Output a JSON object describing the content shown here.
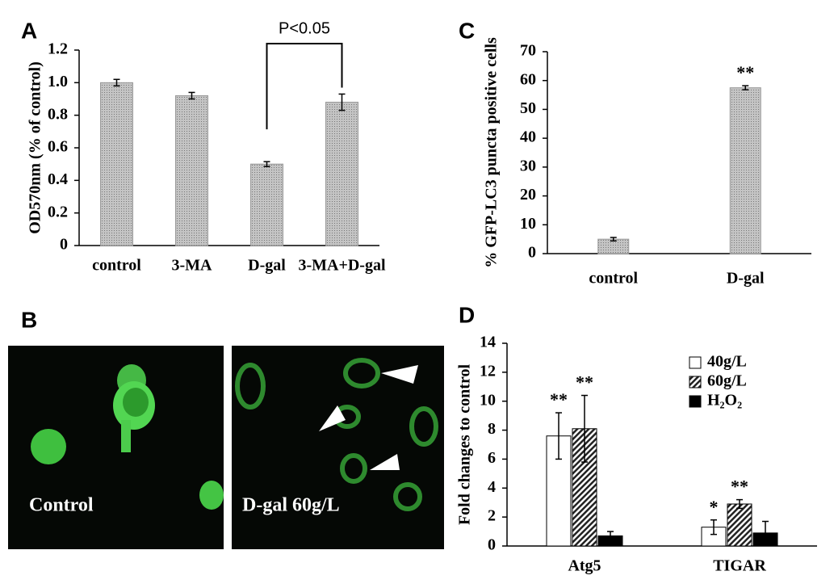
{
  "chart_data": [
    {
      "type": "bar",
      "panel_label": "A",
      "ylabel": "OD570nm (% of control)",
      "categories": [
        "control",
        "3-MA",
        "D-gal",
        "3-MA+D-gal"
      ],
      "values": [
        1.0,
        0.92,
        0.5,
        0.88
      ],
      "errors": [
        0.02,
        0.02,
        0.015,
        0.05
      ],
      "color": "#c4c4c4",
      "ylim": [
        0,
        1.2
      ],
      "yticks": [
        0,
        0.2,
        0.4,
        0.6,
        0.8,
        {
          "value": 1,
          "label": "1.0"
        },
        1.2
      ],
      "annotation": "P<0.05"
    },
    {
      "type": "bar",
      "panel_label": "C",
      "ylabel": "% GFP-LC3 puncta positive cells",
      "categories": [
        "control",
        "D-gal"
      ],
      "values": [
        5,
        57.5
      ],
      "errors": [
        0.6,
        0.7
      ],
      "marks": [
        null,
        "**"
      ],
      "color": "#c4c4c4",
      "ylim": [
        0,
        70
      ],
      "yticks": [
        0,
        10,
        20,
        30,
        40,
        50,
        60,
        70
      ]
    },
    {
      "type": "grouped-bar",
      "panel_label": "D",
      "ylabel": "Fold changes to control",
      "categories": [
        "Atg5",
        "TIGAR"
      ],
      "series": [
        {
          "name": "40g/L",
          "color": "#ffffff",
          "values": [
            7.6,
            1.3
          ],
          "errors": [
            1.6,
            0.5
          ],
          "marks": [
            "**",
            "*"
          ]
        },
        {
          "name": "60g/L",
          "color": "#222222",
          "pattern": "hatch",
          "values": [
            8.1,
            2.9
          ],
          "errors": [
            2.3,
            0.3
          ],
          "marks": [
            "**",
            "**"
          ]
        },
        {
          "name": "H₂O₂",
          "color": "#000000",
          "values": [
            0.7,
            0.9
          ],
          "errors": [
            0.3,
            0.8
          ],
          "marks": [
            null,
            null
          ]
        }
      ],
      "ylim": [
        0,
        14
      ],
      "yticks": [
        0,
        2,
        4,
        6,
        8,
        10,
        12,
        14
      ],
      "legend": "top-right"
    }
  ],
  "image_panel": {
    "panel_label": "B",
    "captions": [
      "Control",
      "D-gal 60g/L"
    ]
  }
}
